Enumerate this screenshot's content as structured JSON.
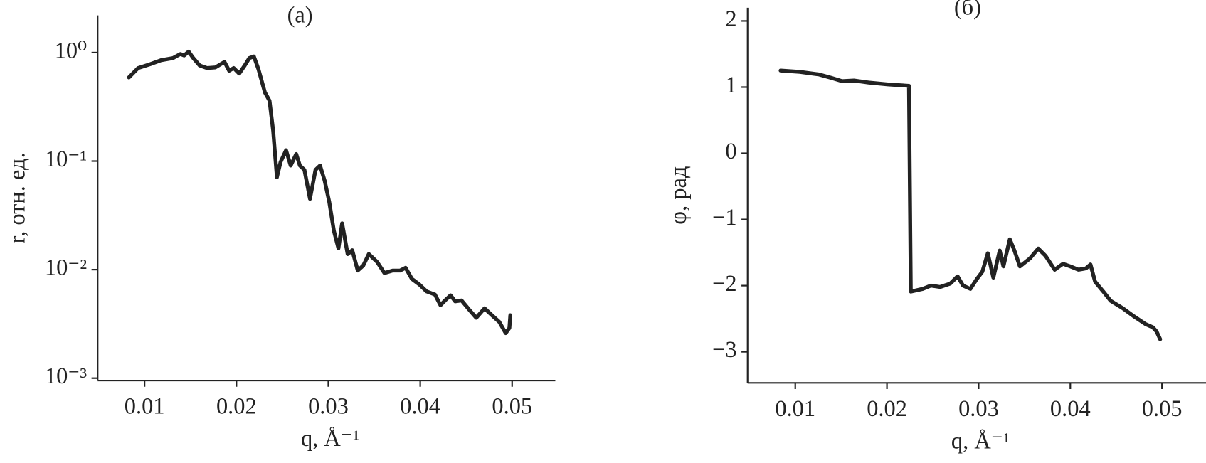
{
  "chart_data": [
    {
      "type": "line",
      "title": "(а)",
      "xlabel": "q, Å⁻¹",
      "ylabel": "r, отн. ед.",
      "log_y": true,
      "xlim": [
        0.0049,
        0.0547
      ],
      "ylim": [
        0.00095,
        2.2
      ],
      "xticks": [
        0.01,
        0.02,
        0.03,
        0.04,
        0.05
      ],
      "yticks": [
        {
          "value": 1,
          "label": "10⁰"
        },
        {
          "value": 0.1,
          "label": "10⁻¹"
        },
        {
          "value": 0.01,
          "label": "10⁻²"
        },
        {
          "value": 0.001,
          "label": "10⁻³"
        }
      ],
      "x": [
        0.0083,
        0.0093,
        0.0106,
        0.0118,
        0.0131,
        0.0139,
        0.0143,
        0.0148,
        0.0153,
        0.016,
        0.0168,
        0.0177,
        0.0187,
        0.0192,
        0.0197,
        0.0203,
        0.0209,
        0.0214,
        0.0219,
        0.0224,
        0.0231,
        0.0236,
        0.024,
        0.0244,
        0.0248,
        0.0254,
        0.0259,
        0.0265,
        0.0269,
        0.0274,
        0.028,
        0.0286,
        0.0291,
        0.0296,
        0.0301,
        0.0306,
        0.0311,
        0.0315,
        0.0321,
        0.0326,
        0.0332,
        0.0338,
        0.0344,
        0.0353,
        0.0361,
        0.037,
        0.0378,
        0.0384,
        0.0391,
        0.0399,
        0.0407,
        0.0416,
        0.0422,
        0.0427,
        0.0433,
        0.0438,
        0.0445,
        0.0453,
        0.0461,
        0.047,
        0.0478,
        0.0486,
        0.0493,
        0.0497,
        0.0498
      ],
      "series": [
        {
          "color": "#222222",
          "values": [
            0.59,
            0.72,
            0.78,
            0.85,
            0.89,
            0.97,
            0.94,
            1.02,
            0.89,
            0.76,
            0.72,
            0.73,
            0.82,
            0.68,
            0.72,
            0.64,
            0.76,
            0.89,
            0.92,
            0.7,
            0.43,
            0.36,
            0.189,
            0.071,
            0.098,
            0.126,
            0.091,
            0.116,
            0.091,
            0.083,
            0.045,
            0.083,
            0.091,
            0.066,
            0.042,
            0.0228,
            0.0157,
            0.0267,
            0.0139,
            0.0151,
            0.0098,
            0.0109,
            0.0139,
            0.0118,
            0.0093,
            0.0098,
            0.0098,
            0.0104,
            0.0082,
            0.0073,
            0.0063,
            0.0059,
            0.0047,
            0.0052,
            0.0058,
            0.0051,
            0.0052,
            0.0043,
            0.0036,
            0.0044,
            0.0038,
            0.0033,
            0.0026,
            0.0029,
            0.0038
          ]
        }
      ]
    },
    {
      "type": "line",
      "title": "(б)",
      "xlabel": "q, Å⁻¹",
      "ylabel": "φ, рад",
      "log_y": false,
      "xlim": [
        0.0048,
        0.0548
      ],
      "ylim": [
        -3.47,
        2.2
      ],
      "xticks": [
        0.01,
        0.02,
        0.03,
        0.04,
        0.05
      ],
      "yticks": [
        2,
        1,
        0,
        {
          "value": -1,
          "label": "−1"
        },
        {
          "value": -2,
          "label": "−2"
        },
        {
          "value": -3,
          "label": "−3"
        }
      ],
      "x": [
        0.0084,
        0.0105,
        0.0126,
        0.0139,
        0.0151,
        0.0164,
        0.018,
        0.0201,
        0.0224,
        0.0226,
        0.0239,
        0.0248,
        0.0258,
        0.0269,
        0.0277,
        0.0283,
        0.0291,
        0.0298,
        0.0304,
        0.031,
        0.0316,
        0.0323,
        0.0327,
        0.0334,
        0.0339,
        0.0345,
        0.0356,
        0.0365,
        0.0373,
        0.0383,
        0.0392,
        0.04,
        0.0409,
        0.0417,
        0.0422,
        0.0427,
        0.0436,
        0.0444,
        0.0457,
        0.0469,
        0.0482,
        0.049,
        0.0494,
        0.0498
      ],
      "series": [
        {
          "color": "#222222",
          "values": [
            1.25,
            1.23,
            1.19,
            1.14,
            1.09,
            1.1,
            1.07,
            1.04,
            1.02,
            -2.09,
            -2.05,
            -2,
            -2.02,
            -1.97,
            -1.86,
            -2,
            -2.05,
            -1.9,
            -1.79,
            -1.51,
            -1.88,
            -1.47,
            -1.71,
            -1.3,
            -1.47,
            -1.71,
            -1.59,
            -1.44,
            -1.55,
            -1.76,
            -1.67,
            -1.71,
            -1.76,
            -1.74,
            -1.68,
            -1.94,
            -2.09,
            -2.23,
            -2.34,
            -2.46,
            -2.58,
            -2.63,
            -2.69,
            -2.81
          ]
        }
      ]
    }
  ]
}
